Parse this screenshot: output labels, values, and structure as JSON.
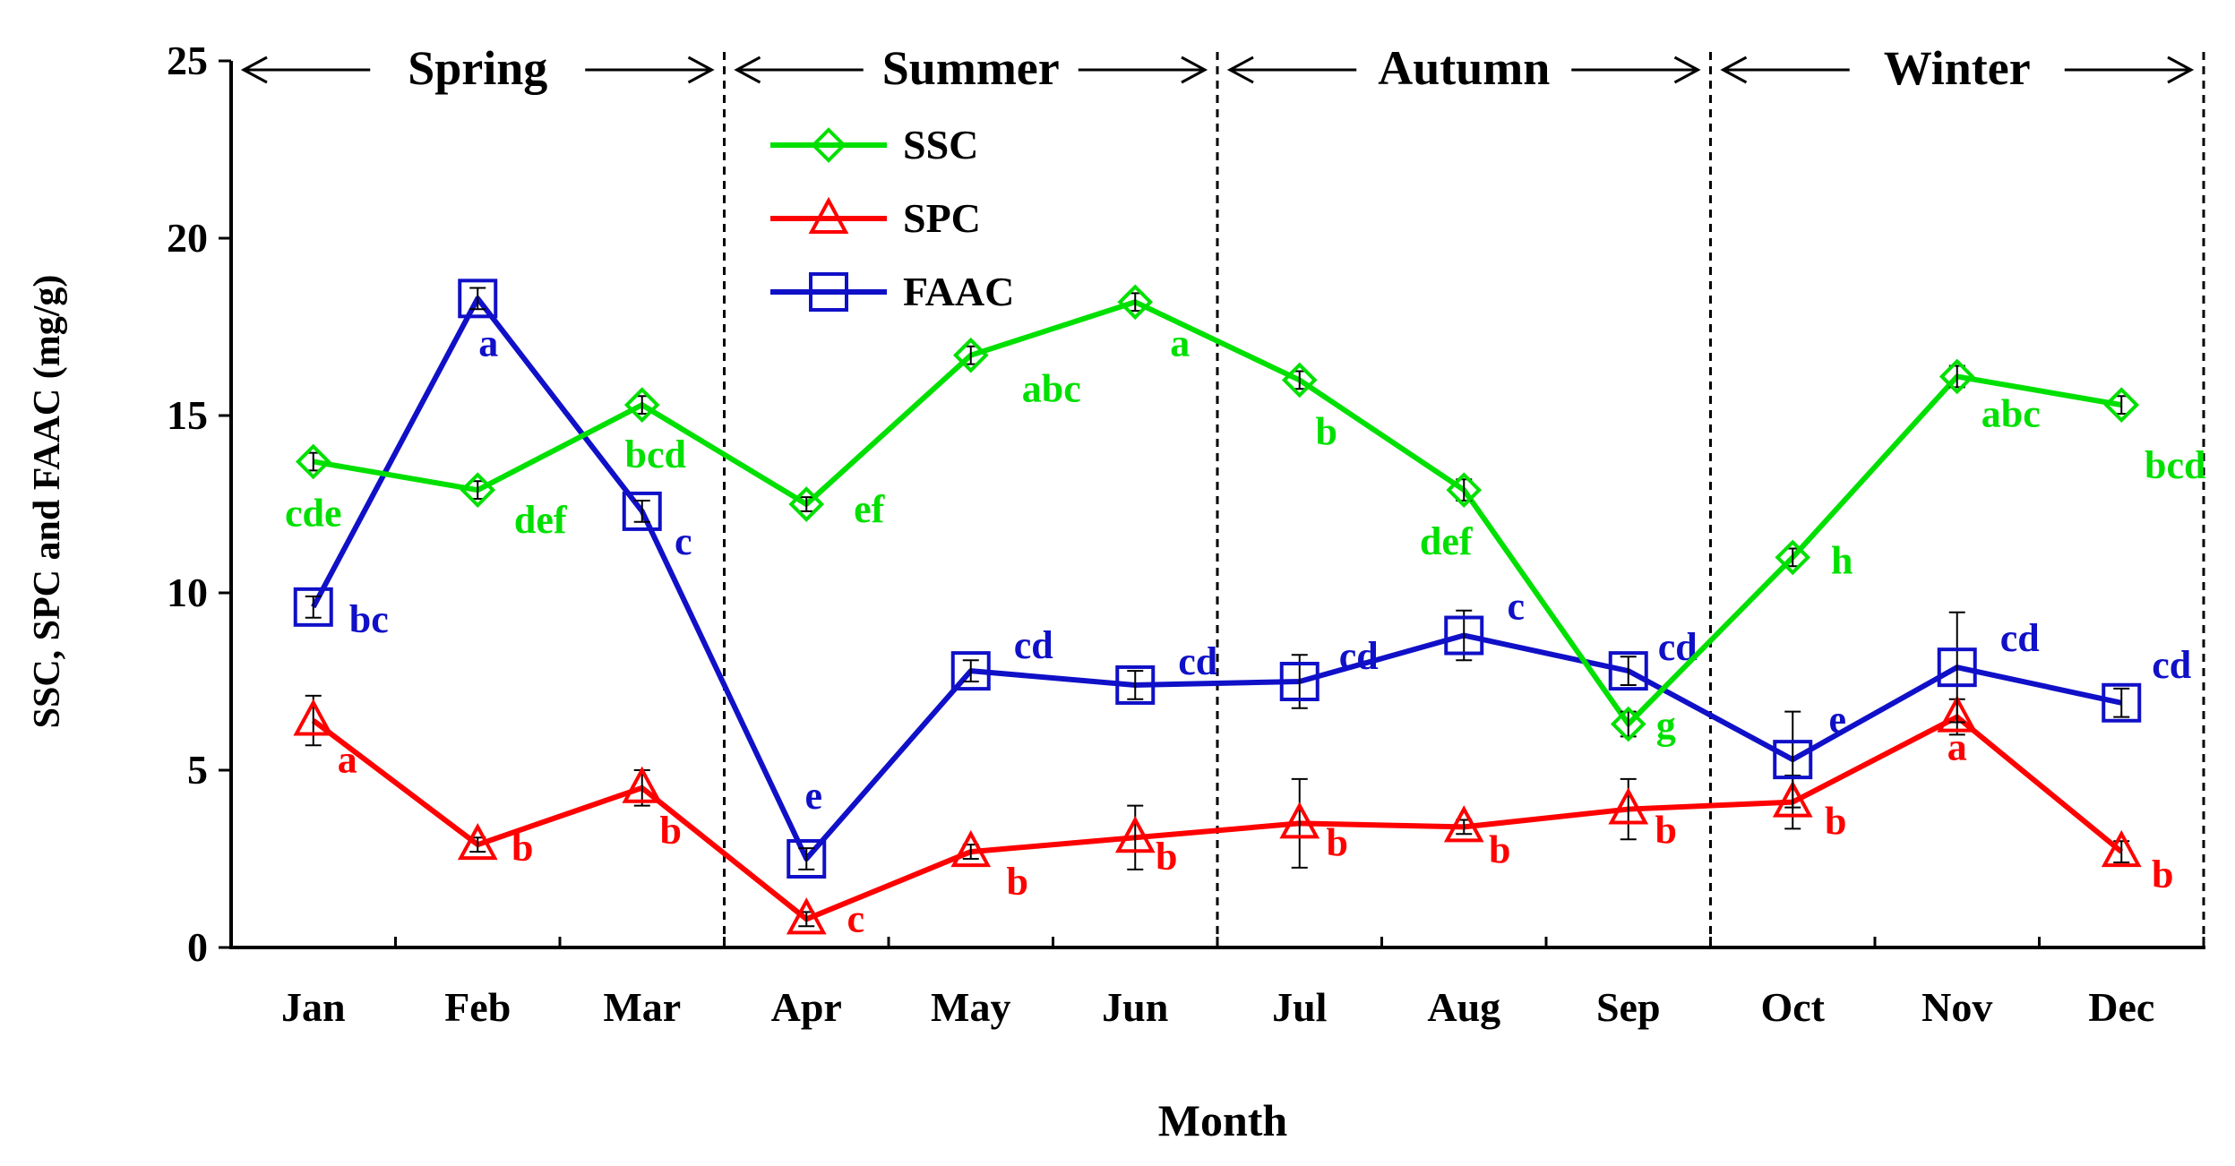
{
  "chart_data": {
    "type": "line",
    "title": "",
    "xlabel": "Month",
    "ylabel": "SSC, SPC and FAAC (mg/g)",
    "ylim": [
      0,
      25
    ],
    "yticks": [
      "0",
      "5",
      "10",
      "15",
      "20",
      "25"
    ],
    "categories": [
      "Jan",
      "Feb",
      "Mar",
      "Apr",
      "May",
      "Jun",
      "Jul",
      "Aug",
      "Sep",
      "Oct",
      "Nov",
      "Dec"
    ],
    "seasons": [
      {
        "label": "Spring",
        "from": 0,
        "to": 3
      },
      {
        "label": "Summer",
        "from": 3,
        "to": 6
      },
      {
        "label": "Autumn",
        "from": 6,
        "to": 9
      },
      {
        "label": "Winter",
        "from": 9,
        "to": 12
      }
    ],
    "series": [
      {
        "name": "SSC",
        "color": "#00e000",
        "marker": "diamond",
        "values": [
          13.7,
          12.9,
          15.3,
          12.5,
          16.7,
          18.2,
          16.0,
          12.9,
          6.3,
          11.0,
          16.1,
          15.3
        ],
        "errors": [
          0.25,
          0.25,
          0.25,
          0.2,
          0.25,
          0.25,
          0.25,
          0.3,
          0.35,
          0.25,
          0.3,
          0.25
        ],
        "labels": [
          "cde",
          "def",
          "bcd",
          "ef",
          "abc",
          "a",
          "b",
          "def",
          "g",
          "h",
          "abc",
          "bcd"
        ]
      },
      {
        "name": "SPC",
        "color": "#ff0000",
        "marker": "triangle",
        "values": [
          6.4,
          2.9,
          4.5,
          0.8,
          2.7,
          3.1,
          3.5,
          3.4,
          3.9,
          4.1,
          6.5,
          2.7
        ],
        "errors": [
          0.7,
          0.2,
          0.5,
          0.2,
          0.2,
          0.9,
          1.25,
          0.2,
          0.85,
          0.75,
          0.5,
          0.3
        ],
        "labels": [
          "a",
          "b",
          "b",
          "c",
          "b",
          "b",
          "b",
          "b",
          "b",
          "b",
          "a",
          "b"
        ]
      },
      {
        "name": "FAAC",
        "color": "#1010c8",
        "marker": "square",
        "values": [
          9.6,
          18.3,
          12.3,
          2.5,
          7.8,
          7.4,
          7.5,
          8.8,
          7.8,
          5.3,
          7.9,
          6.9
        ],
        "errors": [
          0.3,
          0.3,
          0.3,
          0.3,
          0.3,
          0.4,
          0.75,
          0.7,
          0.4,
          1.35,
          1.55,
          0.4
        ],
        "labels": [
          "bc",
          "a",
          "c",
          "e",
          "cd",
          "cd",
          "cd",
          "c",
          "cd",
          "e",
          "cd",
          "cd"
        ]
      }
    ],
    "legend": {
      "position": "top-center",
      "entries": [
        "SSC",
        "SPC",
        "FAAC"
      ]
    }
  }
}
